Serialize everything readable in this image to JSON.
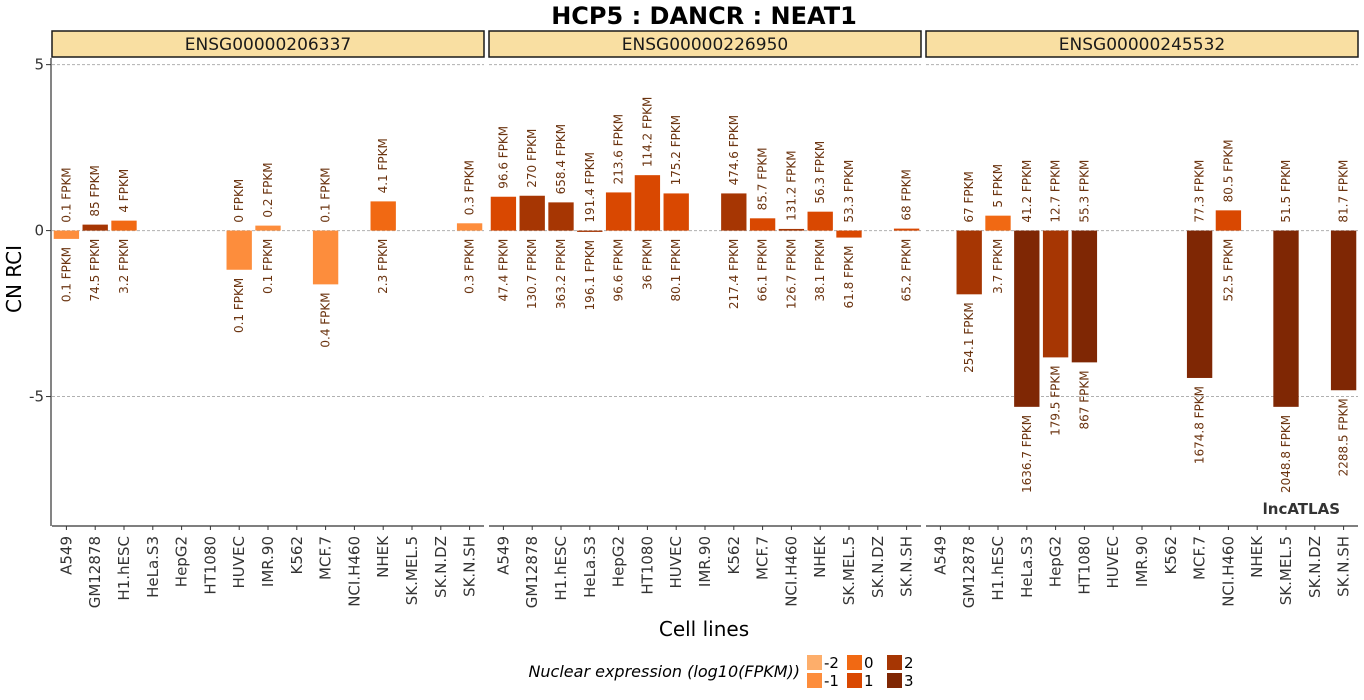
{
  "chart_data": {
    "type": "bar",
    "title": "HCP5 : DANCR : NEAT1",
    "xlabel": "Cell lines",
    "ylabel": "CN RCI",
    "ylim": [
      -8.9,
      5.2
    ],
    "yticks": [
      5,
      0,
      -5
    ],
    "grid": "dashed horizontal at y ticks",
    "watermark": "lncATLAS",
    "categories": [
      "A549",
      "GM12878",
      "H1.hESC",
      "HeLa.S3",
      "HepG2",
      "HT1080",
      "HUVEC",
      "IMR.90",
      "K562",
      "MCF.7",
      "NCI.H460",
      "NHEK",
      "SK.MEL.5",
      "SK.N.DZ",
      "SK.N.SH"
    ],
    "legend": {
      "title": "Nuclear expression (log10(FPKM))",
      "position": "bottom",
      "levels": [
        {
          "label": "-2",
          "color": "#fdae6b"
        },
        {
          "label": "-1",
          "color": "#fd8d3c"
        },
        {
          "label": "0",
          "color": "#f16913"
        },
        {
          "label": "1",
          "color": "#d94801"
        },
        {
          "label": "2",
          "color": "#a63603"
        },
        {
          "label": "3",
          "color": "#7f2704"
        }
      ]
    },
    "panels": [
      {
        "name": "ENSG00000206337",
        "bars": [
          {
            "cat": "A549",
            "value": -0.25,
            "nuc": "0.1 FPKM",
            "cyto": "0.1 FPKM",
            "color": "#fd8d3c"
          },
          {
            "cat": "GM12878",
            "value": 0.18,
            "nuc": "74.5 FPKM",
            "cyto": "85 FPKM",
            "color": "#a63603"
          },
          {
            "cat": "H1.hESC",
            "value": 0.3,
            "nuc": "3.2 FPKM",
            "cyto": "4 FPKM",
            "color": "#f16913"
          },
          {
            "cat": "HUVEC",
            "value": -1.18,
            "nuc": "0.1 FPKM",
            "cyto": "0 FPKM",
            "color": "#fd8d3c"
          },
          {
            "cat": "IMR.90",
            "value": 0.15,
            "nuc": "0.1 FPKM",
            "cyto": "0.2 FPKM",
            "color": "#fd8d3c"
          },
          {
            "cat": "MCF.7",
            "value": -1.62,
            "nuc": "0.4 FPKM",
            "cyto": "0.1 FPKM",
            "color": "#fd8d3c"
          },
          {
            "cat": "NHEK",
            "value": 0.88,
            "nuc": "2.3 FPKM",
            "cyto": "4.1 FPKM",
            "color": "#f16913"
          },
          {
            "cat": "SK.N.SH",
            "value": 0.22,
            "nuc": "0.3 FPKM",
            "cyto": "0.3 FPKM",
            "color": "#fd8d3c"
          }
        ]
      },
      {
        "name": "ENSG00000226950",
        "bars": [
          {
            "cat": "A549",
            "value": 1.02,
            "nuc": "47.4 FPKM",
            "cyto": "96.6 FPKM",
            "color": "#d94801"
          },
          {
            "cat": "GM12878",
            "value": 1.05,
            "nuc": "130.7 FPKM",
            "cyto": "270 FPKM",
            "color": "#a63603"
          },
          {
            "cat": "H1.hESC",
            "value": 0.85,
            "nuc": "363.2 FPKM",
            "cyto": "658.4 FPKM",
            "color": "#a63603"
          },
          {
            "cat": "HeLa.S3",
            "value": -0.04,
            "nuc": "196.1 FPKM",
            "cyto": "191.4 FPKM",
            "color": "#a63603"
          },
          {
            "cat": "HepG2",
            "value": 1.15,
            "nuc": "96.6 FPKM",
            "cyto": "213.6 FPKM",
            "color": "#d94801"
          },
          {
            "cat": "HT1080",
            "value": 1.67,
            "nuc": "36 FPKM",
            "cyto": "114.2 FPKM",
            "color": "#d94801"
          },
          {
            "cat": "HUVEC",
            "value": 1.12,
            "nuc": "80.1 FPKM",
            "cyto": "175.2 FPKM",
            "color": "#d94801"
          },
          {
            "cat": "K562",
            "value": 1.12,
            "nuc": "217.4 FPKM",
            "cyto": "474.6 FPKM",
            "color": "#a63603"
          },
          {
            "cat": "MCF.7",
            "value": 0.37,
            "nuc": "66.1 FPKM",
            "cyto": "85.7 FPKM",
            "color": "#d94801"
          },
          {
            "cat": "NCI.H460",
            "value": 0.05,
            "nuc": "126.7 FPKM",
            "cyto": "131.2 FPKM",
            "color": "#a63603"
          },
          {
            "cat": "NHEK",
            "value": 0.57,
            "nuc": "38.1 FPKM",
            "cyto": "56.3 FPKM",
            "color": "#d94801"
          },
          {
            "cat": "SK.MEL.5",
            "value": -0.21,
            "nuc": "61.8 FPKM",
            "cyto": "53.3 FPKM",
            "color": "#d94801"
          },
          {
            "cat": "SK.N.SH",
            "value": 0.06,
            "nuc": "65.2 FPKM",
            "cyto": "68 FPKM",
            "color": "#d94801"
          }
        ]
      },
      {
        "name": "ENSG00000245532",
        "bars": [
          {
            "cat": "GM12878",
            "value": -1.92,
            "nuc": "254.1 FPKM",
            "cyto": "67 FPKM",
            "color": "#a63603"
          },
          {
            "cat": "H1.hESC",
            "value": 0.45,
            "nuc": "3.7 FPKM",
            "cyto": "5 FPKM",
            "color": "#f16913"
          },
          {
            "cat": "HeLa.S3",
            "value": -5.31,
            "nuc": "1636.7 FPKM",
            "cyto": "41.2 FPKM",
            "color": "#7f2704"
          },
          {
            "cat": "HepG2",
            "value": -3.82,
            "nuc": "179.5 FPKM",
            "cyto": "12.7 FPKM",
            "color": "#a63603"
          },
          {
            "cat": "HT1080",
            "value": -3.97,
            "nuc": "867 FPKM",
            "cyto": "55.3 FPKM",
            "color": "#7f2704"
          },
          {
            "cat": "MCF.7",
            "value": -4.44,
            "nuc": "1674.8 FPKM",
            "cyto": "77.3 FPKM",
            "color": "#7f2704"
          },
          {
            "cat": "NCI.H460",
            "value": 0.61,
            "nuc": "52.5 FPKM",
            "cyto": "80.5 FPKM",
            "color": "#d94801"
          },
          {
            "cat": "SK.MEL.5",
            "value": -5.31,
            "nuc": "2048.8 FPKM",
            "cyto": "51.5 FPKM",
            "color": "#7f2704"
          },
          {
            "cat": "SK.N.SH",
            "value": -4.81,
            "nuc": "2288.5 FPKM",
            "cyto": "81.7 FPKM",
            "color": "#7f2704"
          }
        ]
      }
    ]
  }
}
